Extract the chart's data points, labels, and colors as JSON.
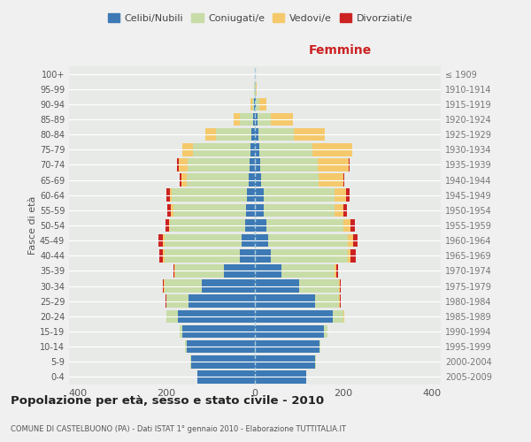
{
  "age_groups": [
    "0-4",
    "5-9",
    "10-14",
    "15-19",
    "20-24",
    "25-29",
    "30-34",
    "35-39",
    "40-44",
    "45-49",
    "50-54",
    "55-59",
    "60-64",
    "65-69",
    "70-74",
    "75-79",
    "80-84",
    "85-89",
    "90-94",
    "95-99",
    "100+"
  ],
  "birth_years": [
    "2005-2009",
    "2000-2004",
    "1995-1999",
    "1990-1994",
    "1985-1989",
    "1980-1984",
    "1975-1979",
    "1970-1974",
    "1965-1969",
    "1960-1964",
    "1955-1959",
    "1950-1954",
    "1945-1949",
    "1940-1944",
    "1935-1939",
    "1930-1934",
    "1925-1929",
    "1920-1924",
    "1915-1919",
    "1910-1914",
    "≤ 1909"
  ],
  "male": {
    "celibi": [
      130,
      145,
      155,
      165,
      175,
      150,
      120,
      70,
      35,
      30,
      22,
      20,
      18,
      14,
      12,
      10,
      8,
      4,
      2,
      0,
      0
    ],
    "coniugati": [
      0,
      2,
      3,
      5,
      25,
      50,
      85,
      110,
      170,
      175,
      170,
      165,
      170,
      140,
      140,
      130,
      80,
      30,
      5,
      2,
      0
    ],
    "vedovi": [
      0,
      0,
      0,
      0,
      1,
      1,
      1,
      2,
      3,
      4,
      3,
      5,
      5,
      12,
      20,
      25,
      25,
      15,
      4,
      1,
      0
    ],
    "divorziati": [
      0,
      0,
      0,
      0,
      0,
      1,
      3,
      3,
      8,
      10,
      8,
      8,
      8,
      4,
      4,
      0,
      0,
      0,
      0,
      0,
      0
    ]
  },
  "female": {
    "nubili": [
      115,
      135,
      145,
      155,
      175,
      135,
      100,
      60,
      35,
      30,
      25,
      20,
      20,
      14,
      12,
      10,
      8,
      5,
      2,
      0,
      0
    ],
    "coniugate": [
      0,
      2,
      3,
      8,
      25,
      55,
      90,
      120,
      175,
      180,
      175,
      160,
      160,
      130,
      130,
      120,
      80,
      30,
      8,
      2,
      0
    ],
    "vedove": [
      0,
      0,
      0,
      0,
      1,
      1,
      2,
      3,
      5,
      12,
      15,
      20,
      25,
      55,
      70,
      90,
      70,
      50,
      15,
      2,
      0
    ],
    "divorziate": [
      0,
      0,
      0,
      0,
      0,
      2,
      2,
      5,
      12,
      10,
      10,
      8,
      8,
      2,
      2,
      0,
      0,
      0,
      0,
      0,
      0
    ]
  },
  "colors": {
    "celibi": "#3d7ab5",
    "coniugati": "#c8dca8",
    "vedovi": "#f5c96b",
    "divorziati": "#cc2222"
  },
  "xlim": 420,
  "title": "Popolazione per età, sesso e stato civile - 2010",
  "subtitle": "COMUNE DI CASTELBUONO (PA) - Dati ISTAT 1° gennaio 2010 - Elaborazione TUTTITALIA.IT",
  "ylabel_left": "Fasce di età",
  "xlabel_right": "Femmine",
  "bg_color": "#f0f0f0",
  "plot_bg": "#e8eae8"
}
